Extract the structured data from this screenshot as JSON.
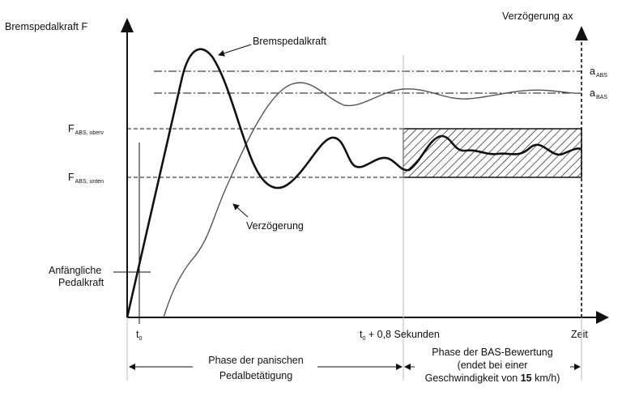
{
  "axes": {
    "y_left_label": "Bremspedalkraft F",
    "y_right_label": "Verzögerung ax",
    "x_label": "Zeit"
  },
  "curves": {
    "force_label": "Bremspedalkraft",
    "decel_label": "Verzögerung"
  },
  "levels": {
    "f_abs_upper_main": "F",
    "f_abs_upper_sub": "ABS, oberv",
    "f_abs_lower_main": "F",
    "f_abs_lower_sub": "ABS, unten",
    "a_abs_main": "a",
    "a_abs_sub": "ABS",
    "a_bas_main": "a",
    "a_bas_sub": "BAS"
  },
  "initial_force": {
    "line1": "Anfängliche",
    "line2": "Pedalkraft"
  },
  "time_marks": {
    "t0_main": "t",
    "t0_sub": "0",
    "t08_main": "t",
    "t08_sub": "0",
    "t08_rest": " + 0,8 Sekunden"
  },
  "phases": {
    "panic_line1": "Phase der panischen",
    "panic_line2": "Pedalbetätigung",
    "bas_line1": "Phase der BAS-Bewertung",
    "bas_line2": "(endet bei einer",
    "bas_line3_pre": "Geschwindigkeit von ",
    "bas_line3_bold": "15",
    "bas_line3_post": " km/h)"
  },
  "colors": {
    "ink": "#111111",
    "curve_gray": "#555555",
    "divider": "#bbbbbb"
  }
}
